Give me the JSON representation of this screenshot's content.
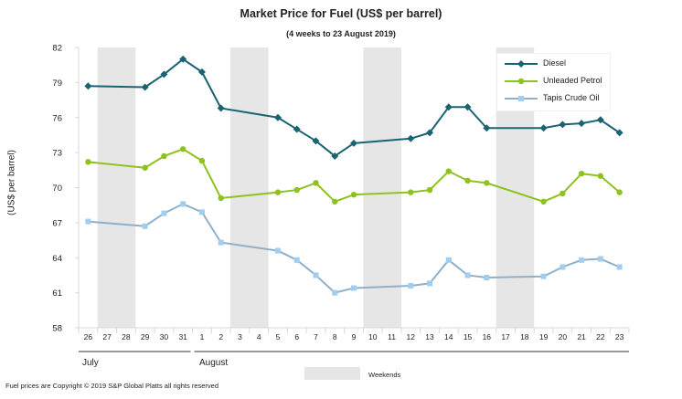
{
  "chart_data": {
    "type": "line",
    "title": "Market Price for Fuel (US$ per barrel)",
    "subtitle": "(4 weeks to 23 August 2019)",
    "xlabel": "",
    "ylabel": "(US$ per barrel)",
    "ylim": [
      58,
      82
    ],
    "yticks": [
      58,
      61,
      64,
      67,
      70,
      73,
      76,
      79,
      82
    ],
    "categories": [
      "26",
      "27",
      "28",
      "29",
      "30",
      "31",
      "1",
      "2",
      "3",
      "4",
      "5",
      "6",
      "7",
      "8",
      "9",
      "10",
      "11",
      "12",
      "13",
      "14",
      "15",
      "16",
      "17",
      "18",
      "19",
      "20",
      "21",
      "22",
      "23"
    ],
    "month_labels": [
      {
        "label": "July",
        "start": 0
      },
      {
        "label": "August",
        "start": 6
      }
    ],
    "weekend_bands": [
      [
        1,
        2
      ],
      [
        8,
        9
      ],
      [
        15,
        16
      ],
      [
        22,
        23
      ]
    ],
    "weekend_legend": "Weekends",
    "grid": false,
    "legend": "top-right",
    "series": [
      {
        "name": "Diesel",
        "color": "#1a6373",
        "marker": "diamond",
        "points": [
          [
            0,
            78.7
          ],
          [
            3,
            78.6
          ],
          [
            4,
            79.7
          ],
          [
            5,
            81.0
          ],
          [
            6,
            79.9
          ],
          [
            7,
            76.8
          ],
          [
            10,
            76.0
          ],
          [
            11,
            75.0
          ],
          [
            12,
            74.0
          ],
          [
            13,
            72.7
          ],
          [
            14,
            73.8
          ],
          [
            17,
            74.2
          ],
          [
            18,
            74.7
          ],
          [
            19,
            76.9
          ],
          [
            20,
            76.9
          ],
          [
            21,
            75.1
          ],
          [
            24,
            75.1
          ],
          [
            25,
            75.4
          ],
          [
            26,
            75.5
          ],
          [
            27,
            75.8
          ],
          [
            28,
            74.7
          ]
        ]
      },
      {
        "name": "Unleaded Petrol",
        "color": "#8dc21f",
        "marker": "circle",
        "points": [
          [
            0,
            72.2
          ],
          [
            3,
            71.7
          ],
          [
            4,
            72.7
          ],
          [
            5,
            73.3
          ],
          [
            6,
            72.3
          ],
          [
            7,
            69.1
          ],
          [
            10,
            69.6
          ],
          [
            11,
            69.8
          ],
          [
            12,
            70.4
          ],
          [
            13,
            68.8
          ],
          [
            14,
            69.4
          ],
          [
            17,
            69.6
          ],
          [
            18,
            69.8
          ],
          [
            19,
            71.4
          ],
          [
            20,
            70.6
          ],
          [
            21,
            70.4
          ],
          [
            24,
            68.8
          ],
          [
            25,
            69.5
          ],
          [
            26,
            71.2
          ],
          [
            27,
            71.0
          ],
          [
            28,
            69.6
          ]
        ]
      },
      {
        "name": "Tapis Crude Oil",
        "color": "#8fb0c8",
        "marker_color": "#a3cdee",
        "marker": "square",
        "points": [
          [
            0,
            67.1
          ],
          [
            3,
            66.7
          ],
          [
            4,
            67.8
          ],
          [
            5,
            68.6
          ],
          [
            6,
            67.9
          ],
          [
            7,
            65.3
          ],
          [
            10,
            64.6
          ],
          [
            11,
            63.8
          ],
          [
            12,
            62.5
          ],
          [
            13,
            61.0
          ],
          [
            14,
            61.4
          ],
          [
            17,
            61.6
          ],
          [
            18,
            61.8
          ],
          [
            19,
            63.8
          ],
          [
            20,
            62.5
          ],
          [
            21,
            62.3
          ],
          [
            24,
            62.4
          ],
          [
            25,
            63.2
          ],
          [
            26,
            63.8
          ],
          [
            27,
            63.9
          ],
          [
            28,
            63.2
          ]
        ]
      }
    ]
  },
  "footnote": "Fuel prices are Copyright © 2019 S&P Global Platts all rights reserved"
}
